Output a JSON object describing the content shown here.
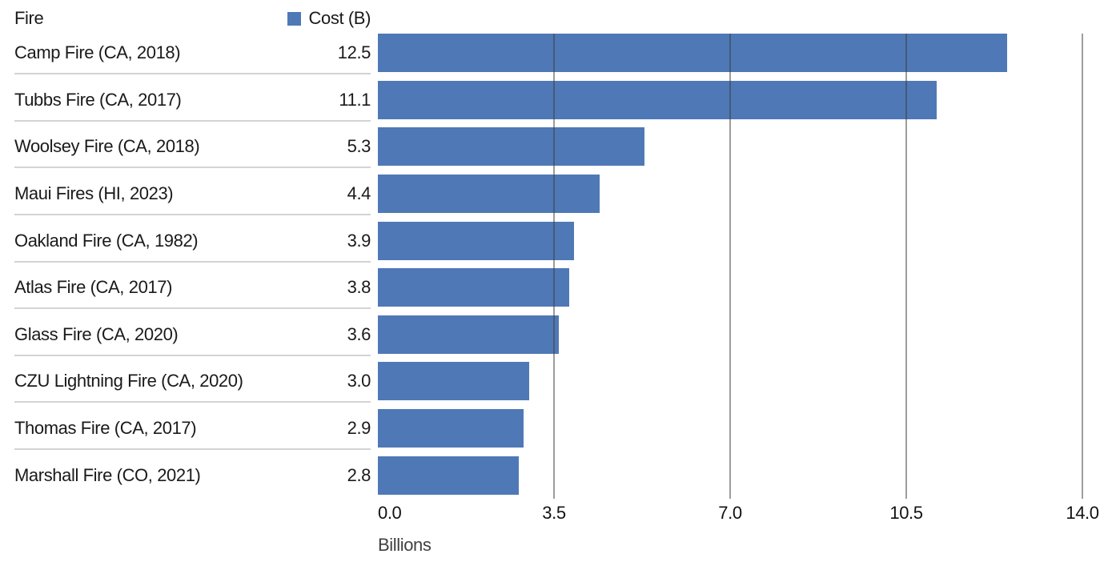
{
  "header": {
    "column_label": "Fire"
  },
  "colors": {
    "bar": "#4F78B6",
    "separator": "#d3d3d3",
    "gridline": "rgba(60,60,60,0.5)"
  },
  "chart_data": {
    "type": "bar",
    "orientation": "horizontal",
    "title": "",
    "series_label": "Cost (B)",
    "categories": [
      "Camp Fire (CA, 2018)",
      "Tubbs Fire (CA, 2017)",
      "Woolsey Fire (CA, 2018)",
      "Maui Fires (HI, 2023)",
      "Oakland Fire (CA, 1982)",
      "Atlas Fire (CA, 2017)",
      "Glass Fire (CA, 2020)",
      "CZU Lightning Fire (CA, 2020)",
      "Thomas Fire (CA, 2017)",
      "Marshall Fire (CO, 2021)"
    ],
    "values": [
      12.5,
      11.1,
      5.3,
      4.4,
      3.9,
      3.8,
      3.6,
      3.0,
      2.9,
      2.8
    ],
    "value_labels": [
      "12.5",
      "11.1",
      "5.3",
      "4.4",
      "3.9",
      "3.8",
      "3.6",
      "3.0",
      "2.9",
      "2.8"
    ],
    "xlabel": "Billions",
    "xlim": [
      0,
      14
    ],
    "xticks": [
      0,
      3.5,
      7,
      10.5,
      14
    ],
    "xtick_labels": [
      "0.0",
      "3.5",
      "7.0",
      "10.5",
      "14.0"
    ],
    "grid": true,
    "legend_position": "top-right"
  }
}
